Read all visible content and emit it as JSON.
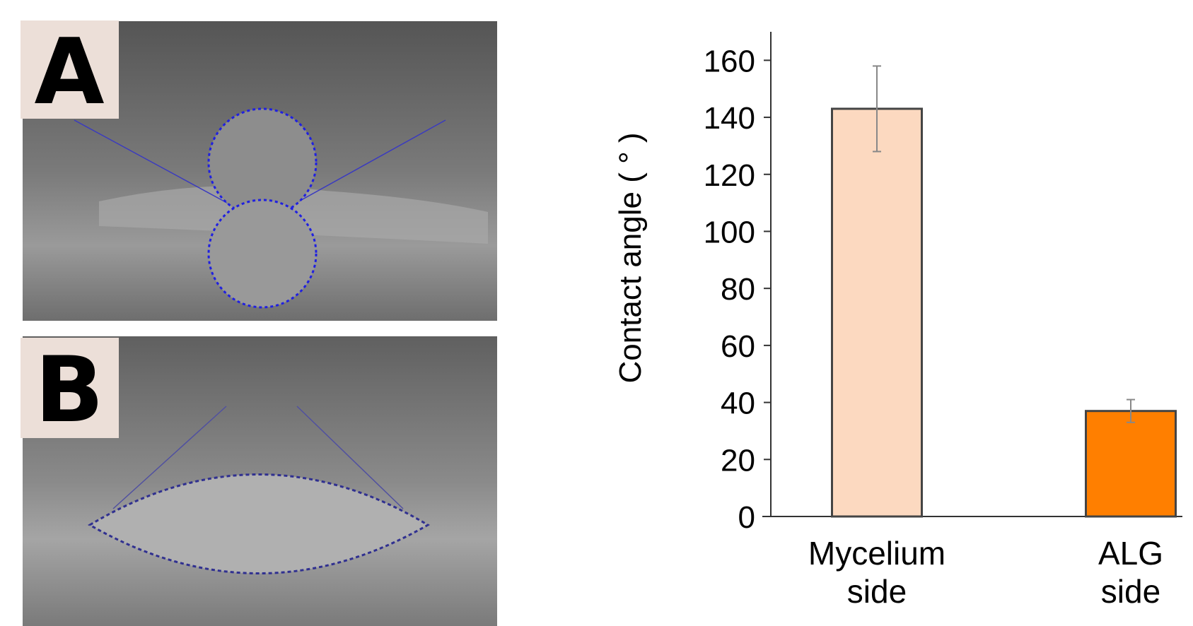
{
  "panels": [
    {
      "label": "A"
    },
    {
      "label": "B"
    }
  ],
  "chart_data": {
    "type": "bar",
    "ylabel": "Contact angle ( ° )",
    "categories": [
      "Mycelium side",
      "ALG side"
    ],
    "values": [
      143,
      37
    ],
    "errors": [
      15,
      4
    ],
    "colors": [
      "#fcd9c0",
      "#ff7f00"
    ],
    "ylim": [
      0,
      170
    ],
    "yticks": [
      0,
      20,
      40,
      60,
      80,
      100,
      120,
      140,
      160
    ]
  }
}
